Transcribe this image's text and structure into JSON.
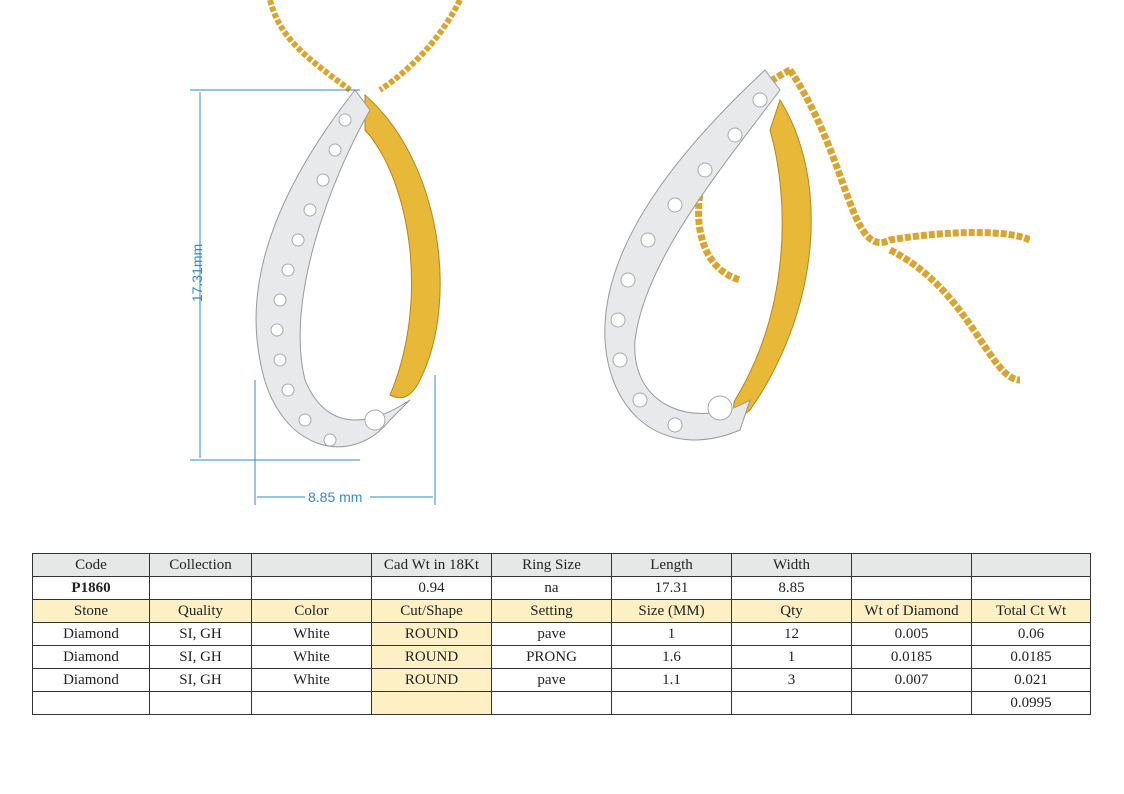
{
  "dimensions": {
    "length_label": "17.31mm",
    "width_label": "8.85 mm"
  },
  "colors": {
    "gold": "#e0b030",
    "dimension_line": "#3a86c8",
    "header_bg": "#e6e8e8",
    "stone_header_bg": "#fdf0c4"
  },
  "table": {
    "header1": [
      "Code",
      "Collection",
      "",
      "Cad Wt in 18Kt",
      "Ring Size",
      "Length",
      "Width",
      "",
      ""
    ],
    "row1": [
      "P1860",
      "",
      "",
      "0.94",
      "na",
      "17.31",
      "8.85",
      "",
      ""
    ],
    "header2": [
      "Stone",
      "Quality",
      "Color",
      "Cut/Shape",
      "Setting",
      "Size (MM)",
      "Qty",
      "Wt of Diamond",
      "Total Ct Wt"
    ],
    "stones": [
      [
        "Diamond",
        "SI, GH",
        "White",
        "ROUND",
        "pave",
        "1",
        "12",
        "0.005",
        "0.06"
      ],
      [
        "Diamond",
        "SI, GH",
        "White",
        "ROUND",
        "PRONG",
        "1.6",
        "1",
        "0.0185",
        "0.0185"
      ],
      [
        "Diamond",
        "SI, GH",
        "White",
        "ROUND",
        "pave",
        "1.1",
        "3",
        "0.007",
        "0.021"
      ]
    ],
    "total": [
      "",
      "",
      "",
      "",
      "",
      "",
      "",
      "",
      "0.0995"
    ]
  }
}
